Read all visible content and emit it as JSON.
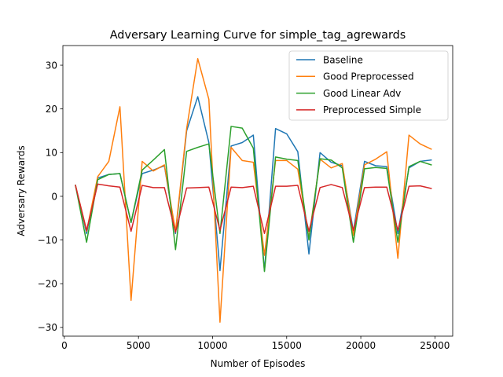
{
  "chart_data": {
    "type": "line",
    "title": "Adversary Learning Curve for simple_tag_agrewards",
    "xlabel": "Number of Episodes",
    "ylabel": "Adversary Rewards",
    "xlim": [
      -100,
      26200
    ],
    "ylim": [
      -32,
      34.5
    ],
    "xticks": [
      0,
      5000,
      10000,
      15000,
      20000,
      25000
    ],
    "yticks": [
      -30,
      -20,
      -10,
      0,
      10,
      20,
      30
    ],
    "grid": false,
    "legend_position": "top-right",
    "x": [
      750,
      1500,
      2250,
      3000,
      3750,
      4500,
      5250,
      6000,
      6750,
      7500,
      8250,
      9000,
      9750,
      10500,
      11250,
      12000,
      12750,
      13500,
      14250,
      15000,
      15750,
      16500,
      17250,
      18000,
      18750,
      19500,
      20250,
      21000,
      21750,
      22500,
      23250,
      24000,
      24750
    ],
    "series": [
      {
        "name": "Baseline",
        "color": "#1f77b4",
        "values": [
          2.5,
          -8.5,
          4.2,
          5.0,
          5.2,
          -6.0,
          5.2,
          6.0,
          7.0,
          -8.5,
          15.0,
          22.8,
          12.3,
          -17.0,
          11.5,
          12.3,
          14.0,
          -17.0,
          15.5,
          14.3,
          10.2,
          -13.2,
          10.0,
          7.8,
          7.0,
          -8.0,
          8.0,
          7.0,
          6.8,
          -8.5,
          6.5,
          8.0,
          8.3
        ]
      },
      {
        "name": "Good Preprocessed",
        "color": "#ff7f0e",
        "values": [
          2.5,
          -8.0,
          4.5,
          8.0,
          20.5,
          -23.8,
          8.0,
          5.8,
          7.2,
          -8.0,
          15.5,
          31.5,
          22.2,
          -28.8,
          11.2,
          8.2,
          7.8,
          -13.5,
          8.2,
          8.2,
          6.2,
          -9.5,
          8.5,
          6.5,
          7.5,
          -9.0,
          7.2,
          8.5,
          10.2,
          -14.2,
          14.0,
          12.0,
          10.8
        ]
      },
      {
        "name": "Good Linear Adv",
        "color": "#2ca02c",
        "values": [
          2.5,
          -10.5,
          3.8,
          5.0,
          5.2,
          -6.0,
          6.0,
          8.3,
          10.7,
          -12.2,
          10.3,
          11.2,
          12.0,
          -8.5,
          16.0,
          15.6,
          11.0,
          -17.2,
          9.0,
          8.5,
          8.2,
          -10.0,
          8.6,
          8.3,
          6.5,
          -10.5,
          6.3,
          6.6,
          6.4,
          -10.5,
          6.8,
          8.0,
          7.2
        ]
      },
      {
        "name": "Preprocessed Simple",
        "color": "#d62728",
        "values": [
          2.5,
          -7.8,
          2.8,
          2.4,
          2.1,
          -8.0,
          2.5,
          2.0,
          2.0,
          -8.2,
          1.9,
          2.0,
          2.1,
          -7.8,
          2.1,
          2.0,
          2.3,
          -8.5,
          2.3,
          2.3,
          2.5,
          -8.0,
          2.0,
          2.7,
          2.0,
          -7.8,
          2.0,
          2.1,
          2.1,
          -7.8,
          2.3,
          2.4,
          1.8
        ]
      }
    ]
  }
}
